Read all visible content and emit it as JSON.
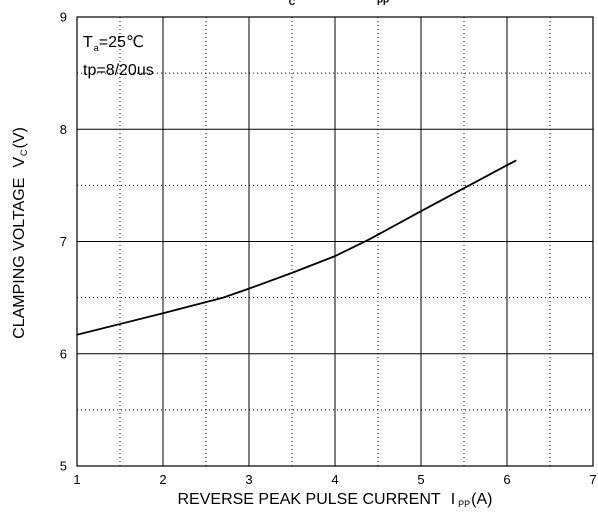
{
  "chart_data": {
    "type": "line",
    "title_fragments": [
      "C",
      "PP"
    ],
    "annotations": {
      "temperature": {
        "symbol": "T",
        "sub": "a",
        "value": "=25℃"
      },
      "pulse": "tp=8/20us"
    },
    "xlabel": {
      "text": "REVERSE PEAK PULSE CURRENT",
      "symbol": "I",
      "sub": "PP",
      "unit": "(A)"
    },
    "ylabel": {
      "text": "CLAMPING VOLTAGE",
      "symbol": "V",
      "sub": "C",
      "unit": "(V)"
    },
    "xlim": [
      1,
      7
    ],
    "ylim": [
      5,
      9
    ],
    "xticks": [
      1,
      2,
      3,
      4,
      5,
      6,
      7
    ],
    "yticks": [
      5,
      6,
      7,
      8,
      9
    ],
    "grid": true,
    "series": [
      {
        "x": [
          1,
          2,
          2.7,
          3,
          3.5,
          4,
          4.4,
          5,
          6,
          6.1
        ],
        "y": [
          6.17,
          6.36,
          6.5,
          6.58,
          6.72,
          6.87,
          7.02,
          7.27,
          7.68,
          7.72
        ],
        "color": "#000000"
      }
    ]
  }
}
